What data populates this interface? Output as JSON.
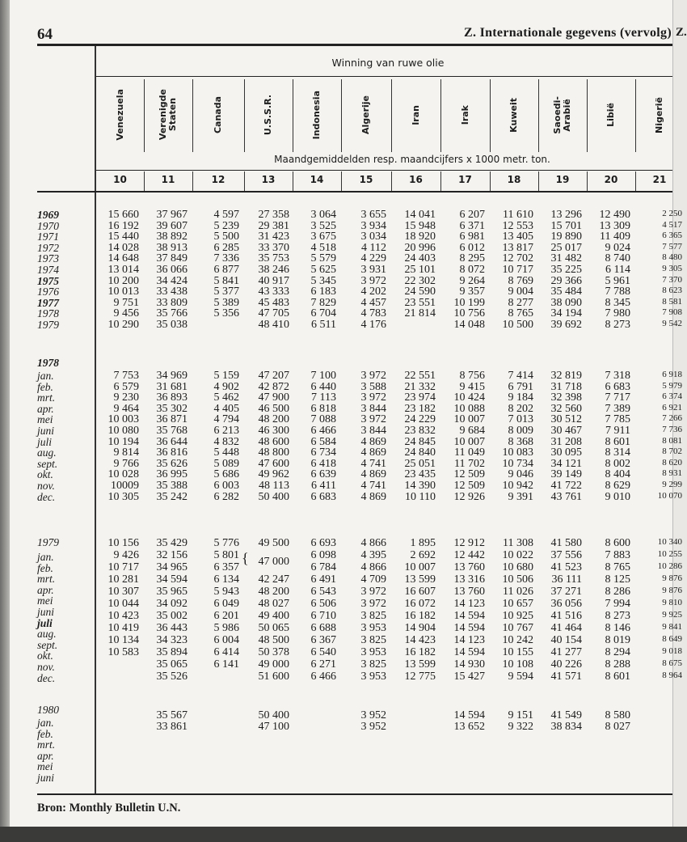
{
  "page": {
    "number": "64",
    "running_title": "Z. Internationale gegevens (vervolg)",
    "next_page_edge": "Z."
  },
  "table": {
    "group_title": "Winning van ruwe olie",
    "unit_line": "Maandgemiddelden resp. maandcijfers x 1000 metr. ton.",
    "columns": [
      {
        "name": "Venezuela",
        "num": "10"
      },
      {
        "name": "Verenigde\nStaten",
        "num": "11"
      },
      {
        "name": "Canada",
        "num": "12"
      },
      {
        "name": "U.S.S.R.",
        "num": "13"
      },
      {
        "name": "Indonesia",
        "num": "14"
      },
      {
        "name": "Algerije",
        "num": "15"
      },
      {
        "name": "Iran",
        "num": "16"
      },
      {
        "name": "Irak",
        "num": "17"
      },
      {
        "name": "Kuweit",
        "num": "18"
      },
      {
        "name": "Saoedi-\nArabië",
        "num": "19"
      },
      {
        "name": "Libië",
        "num": "20"
      },
      {
        "name": "Nigerië",
        "num": "21"
      }
    ],
    "blocks": [
      {
        "labels": [
          "1969",
          "1970",
          "1971",
          "1972",
          "1973",
          "1974",
          "1975",
          "1976",
          "1977",
          "1978",
          "1979"
        ],
        "rows": [
          [
            "15 660",
            "37 967",
            "4 597",
            "27 358",
            "3 064",
            "3 655",
            "14 041",
            "6 207",
            "11 610",
            "13 296",
            "12 490",
            "2 250"
          ],
          [
            "16 192",
            "39 607",
            "5 239",
            "29 381",
            "3 525",
            "3 934",
            "15 948",
            "6 371",
            "12 553",
            "15 701",
            "13 309",
            "4 517"
          ],
          [
            "15 440",
            "38 892",
            "5 500",
            "31 423",
            "3 675",
            "3 034",
            "18 920",
            "6 981",
            "13 405",
            "19 890",
            "11 409",
            "6 365"
          ],
          [
            "14 028",
            "38 913",
            "6 285",
            "33 370",
            "4 518",
            "4 112",
            "20 996",
            "6 012",
            "13 817",
            "25 017",
            "9 024",
            "7 577"
          ],
          [
            "14 648",
            "37 849",
            "7 336",
            "35 753",
            "5 579",
            "4 229",
            "24 403",
            "8 295",
            "12 702",
            "31 482",
            "8 740",
            "8 480"
          ],
          [
            "13 014",
            "36 066",
            "6 877",
            "38 246",
            "5 625",
            "3 931",
            "25 101",
            "8 072",
            "10 717",
            "35 225",
            "6 114",
            "9 305"
          ],
          [
            "10 200",
            "34 424",
            "5 841",
            "40 917",
            "5 345",
            "3 972",
            "22 302",
            "9 264",
            "8 769",
            "29 366",
            "5 961",
            "7 370"
          ],
          [
            "10 013",
            "33 438",
            "5 377",
            "43 333",
            "6 183",
            "4 202",
            "24 590",
            "9 357",
            "9 004",
            "35 484",
            "7 788",
            "8 623"
          ],
          [
            "9 751",
            "33 809",
            "5 389",
            "45 483",
            "7 829",
            "4 457",
            "23 551",
            "10 199",
            "8 277",
            "38 090",
            "8 345",
            "8 581"
          ],
          [
            "9 456",
            "35 766",
            "5 356",
            "47 705",
            "6 704",
            "4 783",
            "21 814",
            "10 756",
            "8 765",
            "34 194",
            "7 980",
            "7 908"
          ],
          [
            "10 290",
            "35 038",
            "",
            "48 410",
            "6 511",
            "4 176",
            "",
            "14 048",
            "10 500",
            "39 692",
            "8 273",
            "9 542"
          ]
        ]
      },
      {
        "year": "1978",
        "labels": [
          "jan.",
          "feb.",
          "mrt.",
          "apr.",
          "mei",
          "juni",
          "juli",
          "aug.",
          "sept.",
          "okt.",
          "nov.",
          "dec."
        ],
        "rows": [
          [
            "7 753",
            "34 969",
            "5 159",
            "47 207",
            "7 100",
            "3 972",
            "22 551",
            "8 756",
            "7 414",
            "32 819",
            "7 318",
            "6 918"
          ],
          [
            "6 579",
            "31 681",
            "4 902",
            "42 872",
            "6 440",
            "3 588",
            "21 332",
            "9 415",
            "6 791",
            "31 718",
            "6 683",
            "5 979"
          ],
          [
            "9 230",
            "36 893",
            "5 462",
            "47 900",
            "7 113",
            "3 972",
            "23 974",
            "10 424",
            "9 184",
            "32 398",
            "7 717",
            "6 374"
          ],
          [
            "9 464",
            "35 302",
            "4 405",
            "46 500",
            "6 818",
            "3 844",
            "23 182",
            "10 088",
            "8 202",
            "32 560",
            "7 389",
            "6 921"
          ],
          [
            "10 003",
            "36 871",
            "4 794",
            "48 200",
            "7 088",
            "3 972",
            "24 229",
            "10 007",
            "7 013",
            "30 512",
            "7 785",
            "7 266"
          ],
          [
            "10 080",
            "35 768",
            "6 213",
            "46 300",
            "6 466",
            "3 844",
            "23 832",
            "9 684",
            "8 009",
            "30 467",
            "7 911",
            "7 736"
          ],
          [
            "10 194",
            "36 644",
            "4 832",
            "48 600",
            "6 584",
            "4 869",
            "24 845",
            "10 007",
            "8 368",
            "31 208",
            "8 601",
            "8 081"
          ],
          [
            "9 814",
            "36 816",
            "5 448",
            "48 800",
            "6 734",
            "4 869",
            "24 840",
            "11 049",
            "10 083",
            "30 095",
            "8 314",
            "8 702"
          ],
          [
            "9 766",
            "35 626",
            "5 089",
            "47 600",
            "6 418",
            "4 741",
            "25 051",
            "11 702",
            "10 734",
            "34 121",
            "8 002",
            "8 620"
          ],
          [
            "10 028",
            "36 995",
            "5 686",
            "49 962",
            "6 639",
            "4 869",
            "23 435",
            "12 509",
            "9 046",
            "39 149",
            "8 404",
            "8 931"
          ],
          [
            "10009",
            "35 388",
            "6 003",
            "48 113",
            "6 411",
            "4 741",
            "14 390",
            "12 509",
            "10 942",
            "41 722",
            "8 629",
            "9 299"
          ],
          [
            "10 305",
            "35 242",
            "6 282",
            "50 400",
            "6 683",
            "4 869",
            "10 110",
            "12 926",
            "9 391",
            "43 761",
            "9 010",
            "10 070"
          ]
        ]
      },
      {
        "year": "1979",
        "labels": [
          "jan.",
          "feb.",
          "mrt.",
          "apr.",
          "mei",
          "juni",
          "juli",
          "aug.",
          "sept.",
          "okt.",
          "nov.",
          "dec."
        ],
        "rows": [
          [
            "10 156",
            "35 429",
            "5 776",
            "49 500",
            "6 693",
            "4 866",
            "1 895",
            "12 912",
            "11 308",
            "41 580",
            "8 600",
            "10 340"
          ],
          [
            "9 426",
            "32 156",
            "5 801",
            "47 000",
            "6 098",
            "4 395",
            "2 692",
            "12 442",
            "10 022",
            "37 556",
            "7 883",
            "10 255"
          ],
          [
            "10 717",
            "34 965",
            "6 357",
            "",
            "6 784",
            "4 866",
            "10 007",
            "13 760",
            "10 680",
            "41 523",
            "8 765",
            "10 286"
          ],
          [
            "10 281",
            "34 594",
            "6 134",
            "42 247",
            "6 491",
            "4 709",
            "13 599",
            "13 316",
            "10 506",
            "36 111",
            "8 125",
            "9 876"
          ],
          [
            "10 307",
            "35 965",
            "5 943",
            "48 200",
            "6 543",
            "3 972",
            "16 607",
            "13 760",
            "11 026",
            "37 271",
            "8 286",
            "9 876"
          ],
          [
            "10 044",
            "34 092",
            "6 049",
            "48 027",
            "6 506",
            "3 972",
            "16 072",
            "14 123",
            "10 657",
            "36 056",
            "7 994",
            "9 810"
          ],
          [
            "10 423",
            "35 002",
            "6 201",
            "49 400",
            "6 710",
            "3 825",
            "16 182",
            "14 594",
            "10 925",
            "41 516",
            "8 273",
            "9 925"
          ],
          [
            "10 419",
            "36 443",
            "5 986",
            "50 065",
            "6 688",
            "3 953",
            "14 904",
            "14 594",
            "10 767",
            "41 464",
            "8 146",
            "9 841"
          ],
          [
            "10 134",
            "34 323",
            "6 004",
            "48 500",
            "6 367",
            "3 825",
            "14 423",
            "14 123",
            "10 242",
            "40 154",
            "8 019",
            "8 649"
          ],
          [
            "10 583",
            "35 894",
            "6 414",
            "50 378",
            "6 540",
            "3 953",
            "16 182",
            "14 594",
            "10 155",
            "41 277",
            "8 294",
            "9 018"
          ],
          [
            "",
            "35 065",
            "6 141",
            "49 000",
            "6 271",
            "3 825",
            "13 599",
            "14 930",
            "10 108",
            "40 226",
            "8 288",
            "8 675"
          ],
          [
            "",
            "35 526",
            "",
            "51 600",
            "6 466",
            "3 953",
            "12 775",
            "15 427",
            "9 594",
            "41 571",
            "8 601",
            "8 964"
          ]
        ]
      },
      {
        "year": "1980",
        "labels": [
          "jan.",
          "feb.",
          "mrt.",
          "apr.",
          "mei",
          "juni"
        ],
        "rows": [
          [
            "",
            "35 567",
            "",
            "50 400",
            "",
            "3 952",
            "",
            "14 594",
            "9 151",
            "41 549",
            "8 580",
            ""
          ],
          [
            "",
            "33 861",
            "",
            "47 100",
            "",
            "3 952",
            "",
            "13 652",
            "9 322",
            "38 834",
            "8 027",
            ""
          ]
        ]
      }
    ]
  },
  "source": "Bron: Monthly Bulletin U.N."
}
